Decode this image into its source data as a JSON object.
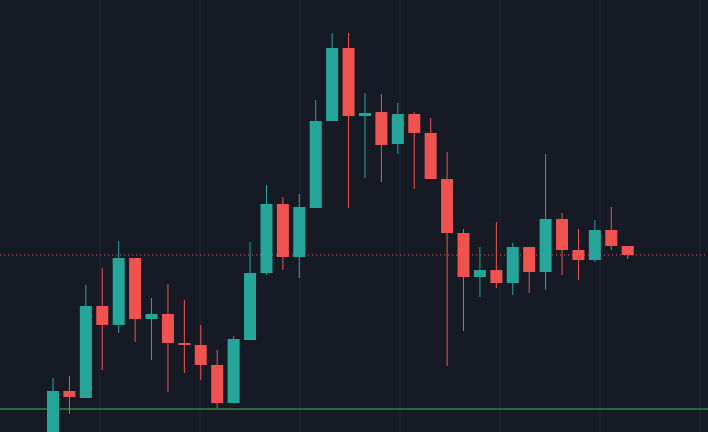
{
  "chart_data": {
    "type": "candlestick",
    "open": [
      0,
      41,
      34,
      126,
      107,
      174,
      113,
      118,
      89,
      87,
      67,
      29,
      92,
      159,
      228,
      175,
      224,
      311,
      384,
      316,
      320,
      288,
      318,
      299,
      253,
      199,
      155,
      162,
      149,
      185,
      160,
      213,
      182,
      172,
      202,
      186
    ],
    "high": [
      54,
      56,
      147,
      164,
      191,
      174,
      134,
      148,
      132,
      107,
      82,
      96,
      190,
      247,
      235,
      238,
      332,
      399,
      399,
      339,
      338,
      329,
      320,
      314,
      280,
      203,
      185,
      210,
      189,
      185,
      278,
      219,
      203,
      212,
      225,
      186
    ],
    "low": [
      0,
      18,
      34,
      62,
      99,
      90,
      72,
      40,
      59,
      52,
      24,
      29,
      92,
      157,
      162,
      154,
      224,
      311,
      224,
      254,
      250,
      278,
      243,
      253,
      66,
      101,
      135,
      144,
      137,
      139,
      142,
      157,
      152,
      170,
      182,
      173
    ],
    "close": [
      41,
      35,
      126,
      107,
      174,
      113,
      118,
      89,
      87,
      67,
      29,
      93,
      159,
      228,
      175,
      225,
      311,
      384,
      316,
      319,
      287,
      318,
      299,
      253,
      199,
      155,
      162,
      149,
      185,
      160,
      213,
      182,
      172,
      202,
      186,
      177
    ],
    "up_color": "#26a69a",
    "down_color": "#ef5350",
    "ylim": [
      0,
      432
    ],
    "lines": [
      {
        "value": 177,
        "color": "#ef5350",
        "style": "dotted"
      },
      {
        "value": 23,
        "color": "#4caf50",
        "style": "solid"
      }
    ]
  }
}
